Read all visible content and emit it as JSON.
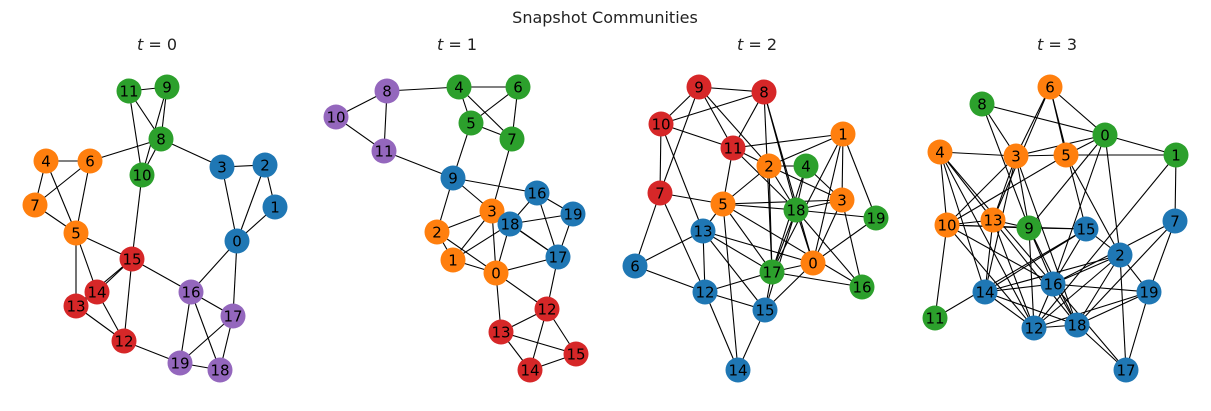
{
  "title": "Snapshot Communities",
  "colors": {
    "blue": "#1f77b4",
    "orange": "#ff7f0e",
    "green": "#2ca02c",
    "red": "#d62728",
    "purple": "#9467bd"
  },
  "panels": [
    {
      "title_var": "t",
      "title_rest": " = 0",
      "nodes": [
        {
          "id": "0",
          "c": "blue"
        },
        {
          "id": "1",
          "c": "blue"
        },
        {
          "id": "2",
          "c": "blue"
        },
        {
          "id": "3",
          "c": "blue"
        },
        {
          "id": "4",
          "c": "orange"
        },
        {
          "id": "5",
          "c": "orange"
        },
        {
          "id": "6",
          "c": "orange"
        },
        {
          "id": "7",
          "c": "orange"
        },
        {
          "id": "8",
          "c": "green"
        },
        {
          "id": "9",
          "c": "green"
        },
        {
          "id": "10",
          "c": "green"
        },
        {
          "id": "11",
          "c": "green"
        },
        {
          "id": "12",
          "c": "red"
        },
        {
          "id": "13",
          "c": "red"
        },
        {
          "id": "14",
          "c": "red"
        },
        {
          "id": "15",
          "c": "red"
        },
        {
          "id": "16",
          "c": "purple"
        },
        {
          "id": "17",
          "c": "purple"
        },
        {
          "id": "18",
          "c": "purple"
        },
        {
          "id": "19",
          "c": "purple"
        }
      ],
      "edges": [
        [
          "11",
          "9"
        ],
        [
          "11",
          "8"
        ],
        [
          "9",
          "8"
        ],
        [
          "9",
          "10"
        ],
        [
          "11",
          "10"
        ],
        [
          "8",
          "10"
        ],
        [
          "8",
          "6"
        ],
        [
          "8",
          "3"
        ],
        [
          "3",
          "2"
        ],
        [
          "3",
          "0"
        ],
        [
          "2",
          "1"
        ],
        [
          "2",
          "0"
        ],
        [
          "1",
          "0"
        ],
        [
          "0",
          "16"
        ],
        [
          "0",
          "17"
        ],
        [
          "4",
          "6"
        ],
        [
          "4",
          "7"
        ],
        [
          "4",
          "5"
        ],
        [
          "6",
          "7"
        ],
        [
          "6",
          "5"
        ],
        [
          "7",
          "5"
        ],
        [
          "5",
          "15"
        ],
        [
          "5",
          "13"
        ],
        [
          "5",
          "14"
        ],
        [
          "10",
          "15"
        ],
        [
          "15",
          "14"
        ],
        [
          "15",
          "13"
        ],
        [
          "15",
          "12"
        ],
        [
          "15",
          "16"
        ],
        [
          "14",
          "13"
        ],
        [
          "14",
          "12"
        ],
        [
          "13",
          "12"
        ],
        [
          "12",
          "19"
        ],
        [
          "16",
          "19"
        ],
        [
          "16",
          "18"
        ],
        [
          "16",
          "17"
        ],
        [
          "17",
          "18"
        ],
        [
          "17",
          "19"
        ],
        [
          "19",
          "18"
        ]
      ]
    },
    {
      "title_var": "t",
      "title_rest": " = 1",
      "nodes": [
        {
          "id": "0",
          "c": "orange"
        },
        {
          "id": "1",
          "c": "orange"
        },
        {
          "id": "2",
          "c": "orange"
        },
        {
          "id": "3",
          "c": "orange"
        },
        {
          "id": "4",
          "c": "green"
        },
        {
          "id": "5",
          "c": "green"
        },
        {
          "id": "6",
          "c": "green"
        },
        {
          "id": "7",
          "c": "green"
        },
        {
          "id": "8",
          "c": "purple"
        },
        {
          "id": "9",
          "c": "blue"
        },
        {
          "id": "10",
          "c": "purple"
        },
        {
          "id": "11",
          "c": "purple"
        },
        {
          "id": "12",
          "c": "red"
        },
        {
          "id": "13",
          "c": "red"
        },
        {
          "id": "14",
          "c": "red"
        },
        {
          "id": "15",
          "c": "red"
        },
        {
          "id": "16",
          "c": "blue"
        },
        {
          "id": "17",
          "c": "blue"
        },
        {
          "id": "18",
          "c": "blue"
        },
        {
          "id": "19",
          "c": "blue"
        }
      ],
      "edges": [
        [
          "8",
          "10"
        ],
        [
          "8",
          "11"
        ],
        [
          "10",
          "11"
        ],
        [
          "8",
          "4"
        ],
        [
          "11",
          "9"
        ],
        [
          "4",
          "6"
        ],
        [
          "4",
          "5"
        ],
        [
          "4",
          "7"
        ],
        [
          "6",
          "5"
        ],
        [
          "6",
          "7"
        ],
        [
          "5",
          "7"
        ],
        [
          "5",
          "9"
        ],
        [
          "7",
          "3"
        ],
        [
          "9",
          "2"
        ],
        [
          "9",
          "3"
        ],
        [
          "9",
          "16"
        ],
        [
          "2",
          "3"
        ],
        [
          "2",
          "1"
        ],
        [
          "2",
          "0"
        ],
        [
          "3",
          "1"
        ],
        [
          "3",
          "0"
        ],
        [
          "3",
          "18"
        ],
        [
          "3",
          "17"
        ],
        [
          "1",
          "0"
        ],
        [
          "1",
          "18"
        ],
        [
          "0",
          "18"
        ],
        [
          "0",
          "17"
        ],
        [
          "0",
          "13"
        ],
        [
          "0",
          "12"
        ],
        [
          "16",
          "18"
        ],
        [
          "16",
          "19"
        ],
        [
          "16",
          "17"
        ],
        [
          "18",
          "19"
        ],
        [
          "18",
          "17"
        ],
        [
          "19",
          "17"
        ],
        [
          "17",
          "12"
        ],
        [
          "12",
          "13"
        ],
        [
          "12",
          "14"
        ],
        [
          "12",
          "15"
        ],
        [
          "13",
          "14"
        ],
        [
          "13",
          "15"
        ],
        [
          "14",
          "15"
        ]
      ]
    },
    {
      "title_var": "t",
      "title_rest": " = 2",
      "nodes": [
        {
          "id": "0",
          "c": "orange"
        },
        {
          "id": "1",
          "c": "orange"
        },
        {
          "id": "2",
          "c": "orange"
        },
        {
          "id": "3",
          "c": "orange"
        },
        {
          "id": "4",
          "c": "green"
        },
        {
          "id": "5",
          "c": "orange"
        },
        {
          "id": "6",
          "c": "blue"
        },
        {
          "id": "7",
          "c": "red"
        },
        {
          "id": "8",
          "c": "red"
        },
        {
          "id": "9",
          "c": "red"
        },
        {
          "id": "10",
          "c": "red"
        },
        {
          "id": "11",
          "c": "red"
        },
        {
          "id": "12",
          "c": "blue"
        },
        {
          "id": "13",
          "c": "blue"
        },
        {
          "id": "14",
          "c": "blue"
        },
        {
          "id": "15",
          "c": "blue"
        },
        {
          "id": "16",
          "c": "green"
        },
        {
          "id": "17",
          "c": "green"
        },
        {
          "id": "18",
          "c": "green"
        },
        {
          "id": "19",
          "c": "green"
        }
      ],
      "edges": [
        [
          "9",
          "8"
        ],
        [
          "9",
          "10"
        ],
        [
          "9",
          "11"
        ],
        [
          "9",
          "7"
        ],
        [
          "9",
          "2"
        ],
        [
          "8",
          "10"
        ],
        [
          "8",
          "11"
        ],
        [
          "8",
          "18"
        ],
        [
          "8",
          "17"
        ],
        [
          "8",
          "0"
        ],
        [
          "10",
          "11"
        ],
        [
          "10",
          "7"
        ],
        [
          "10",
          "13"
        ],
        [
          "11",
          "2"
        ],
        [
          "11",
          "5"
        ],
        [
          "11",
          "18"
        ],
        [
          "11",
          "1"
        ],
        [
          "7",
          "5"
        ],
        [
          "7",
          "6"
        ],
        [
          "7",
          "12"
        ],
        [
          "1",
          "2"
        ],
        [
          "1",
          "3"
        ],
        [
          "1",
          "17"
        ],
        [
          "1",
          "19"
        ],
        [
          "1",
          "0"
        ],
        [
          "2",
          "4"
        ],
        [
          "2",
          "5"
        ],
        [
          "2",
          "18"
        ],
        [
          "2",
          "17"
        ],
        [
          "2",
          "3"
        ],
        [
          "4",
          "18"
        ],
        [
          "4",
          "17"
        ],
        [
          "4",
          "3"
        ],
        [
          "5",
          "13"
        ],
        [
          "5",
          "18"
        ],
        [
          "5",
          "3"
        ],
        [
          "5",
          "17"
        ],
        [
          "5",
          "16"
        ],
        [
          "5",
          "14"
        ],
        [
          "18",
          "3"
        ],
        [
          "18",
          "0"
        ],
        [
          "18",
          "17"
        ],
        [
          "18",
          "19"
        ],
        [
          "18",
          "16"
        ],
        [
          "18",
          "15"
        ],
        [
          "3",
          "0"
        ],
        [
          "3",
          "16"
        ],
        [
          "13",
          "6"
        ],
        [
          "13",
          "12"
        ],
        [
          "13",
          "17"
        ],
        [
          "13",
          "15"
        ],
        [
          "13",
          "0"
        ],
        [
          "6",
          "12"
        ],
        [
          "12",
          "17"
        ],
        [
          "12",
          "15"
        ],
        [
          "12",
          "14"
        ],
        [
          "17",
          "15"
        ],
        [
          "17",
          "0"
        ],
        [
          "17",
          "16"
        ],
        [
          "15",
          "14"
        ],
        [
          "15",
          "0"
        ],
        [
          "19",
          "0"
        ]
      ]
    },
    {
      "title_var": "t",
      "title_rest": " = 3",
      "nodes": [
        {
          "id": "0",
          "c": "green"
        },
        {
          "id": "1",
          "c": "green"
        },
        {
          "id": "2",
          "c": "blue"
        },
        {
          "id": "3",
          "c": "orange"
        },
        {
          "id": "4",
          "c": "orange"
        },
        {
          "id": "5",
          "c": "orange"
        },
        {
          "id": "6",
          "c": "orange"
        },
        {
          "id": "7",
          "c": "blue"
        },
        {
          "id": "8",
          "c": "green"
        },
        {
          "id": "9",
          "c": "green"
        },
        {
          "id": "10",
          "c": "orange"
        },
        {
          "id": "11",
          "c": "green"
        },
        {
          "id": "12",
          "c": "blue"
        },
        {
          "id": "13",
          "c": "orange"
        },
        {
          "id": "14",
          "c": "blue"
        },
        {
          "id": "15",
          "c": "blue"
        },
        {
          "id": "16",
          "c": "blue"
        },
        {
          "id": "17",
          "c": "blue"
        },
        {
          "id": "18",
          "c": "blue"
        },
        {
          "id": "19",
          "c": "blue"
        }
      ],
      "edges": [
        [
          "8",
          "3"
        ],
        [
          "8",
          "9"
        ],
        [
          "8",
          "0"
        ],
        [
          "6",
          "3"
        ],
        [
          "6",
          "5"
        ],
        [
          "6",
          "0"
        ],
        [
          "6",
          "13"
        ],
        [
          "6",
          "15"
        ],
        [
          "0",
          "1"
        ],
        [
          "0",
          "5"
        ],
        [
          "0",
          "9"
        ],
        [
          "0",
          "2"
        ],
        [
          "0",
          "16"
        ],
        [
          "0",
          "3"
        ],
        [
          "4",
          "3"
        ],
        [
          "4",
          "10"
        ],
        [
          "4",
          "13"
        ],
        [
          "4",
          "12"
        ],
        [
          "4",
          "14"
        ],
        [
          "4",
          "16"
        ],
        [
          "3",
          "5"
        ],
        [
          "3",
          "10"
        ],
        [
          "3",
          "13"
        ],
        [
          "3",
          "9"
        ],
        [
          "3",
          "14"
        ],
        [
          "3",
          "18"
        ],
        [
          "5",
          "2"
        ],
        [
          "5",
          "1"
        ],
        [
          "5",
          "10"
        ],
        [
          "10",
          "13"
        ],
        [
          "10",
          "9"
        ],
        [
          "10",
          "15"
        ],
        [
          "10",
          "11"
        ],
        [
          "10",
          "12"
        ],
        [
          "10",
          "16"
        ],
        [
          "13",
          "9"
        ],
        [
          "13",
          "14"
        ],
        [
          "13",
          "12"
        ],
        [
          "13",
          "18"
        ],
        [
          "9",
          "15"
        ],
        [
          "9",
          "16"
        ],
        [
          "9",
          "18"
        ],
        [
          "9",
          "12"
        ],
        [
          "15",
          "2"
        ],
        [
          "15",
          "14"
        ],
        [
          "15",
          "16"
        ],
        [
          "15",
          "11"
        ],
        [
          "7",
          "1"
        ],
        [
          "7",
          "16"
        ],
        [
          "7",
          "18"
        ],
        [
          "7",
          "19"
        ],
        [
          "1",
          "12"
        ],
        [
          "2",
          "16"
        ],
        [
          "2",
          "12"
        ],
        [
          "2",
          "19"
        ],
        [
          "2",
          "18"
        ],
        [
          "2",
          "14"
        ],
        [
          "2",
          "17"
        ],
        [
          "14",
          "12"
        ],
        [
          "14",
          "16"
        ],
        [
          "14",
          "18"
        ],
        [
          "16",
          "12"
        ],
        [
          "16",
          "18"
        ],
        [
          "16",
          "19"
        ],
        [
          "16",
          "17"
        ],
        [
          "12",
          "18"
        ],
        [
          "12",
          "19"
        ],
        [
          "18",
          "19"
        ],
        [
          "18",
          "17"
        ],
        [
          "19",
          "17"
        ]
      ]
    }
  ]
}
